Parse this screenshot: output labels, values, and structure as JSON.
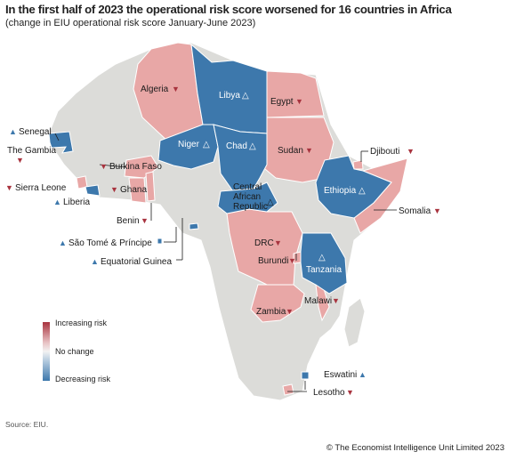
{
  "title": "In the first half of 2023 the operational risk score worsened for 16 countries in Africa",
  "subtitle": "(change in EIU operational risk score January-June 2023)",
  "source": "Source: EIU.",
  "copyright": "© The Economist Intelligence Unit Limited 2023",
  "colors": {
    "worsened": "#e8a7a6",
    "improved": "#3d78ac",
    "no_change": "#dcdcd9",
    "up_arrow": "#3d78ac",
    "down_arrow": "#a8333e",
    "border": "#ffffff"
  },
  "legend": {
    "top": "Increasing risk",
    "middle": "No change",
    "bottom": "Decreasing risk"
  },
  "countries": {
    "algeria": {
      "name": "Algeria",
      "change": "worsened"
    },
    "libya": {
      "name": "Libya",
      "change": "improved"
    },
    "egypt": {
      "name": "Egypt",
      "change": "worsened"
    },
    "niger": {
      "name": "Niger",
      "change": "improved"
    },
    "chad": {
      "name": "Chad",
      "change": "improved"
    },
    "sudan": {
      "name": "Sudan",
      "change": "worsened"
    },
    "senegal": {
      "name": "Senegal",
      "change": "improved"
    },
    "the_gambia": {
      "name": "The Gambia",
      "change": "worsened"
    },
    "burkina_faso": {
      "name": "Burkina Faso",
      "change": "worsened"
    },
    "ghana": {
      "name": "Ghana",
      "change": "worsened"
    },
    "sierra_leone": {
      "name": "Sierra Leone",
      "change": "worsened"
    },
    "liberia": {
      "name": "Liberia",
      "change": "improved"
    },
    "benin": {
      "name": "Benin",
      "change": "worsened"
    },
    "djibouti": {
      "name": "Djibouti",
      "change": "worsened"
    },
    "ethiopia": {
      "name": "Ethiopia",
      "change": "improved"
    },
    "somalia": {
      "name": "Somalia",
      "change": "worsened"
    },
    "central_african_republic": {
      "name": "Central African Republic",
      "lines": [
        "Central",
        "African",
        "Republic"
      ],
      "change": "improved"
    },
    "sao_tome": {
      "name": "São Tomé & Príncipe",
      "change": "improved"
    },
    "equatorial_guinea": {
      "name": "Equatorial Guinea",
      "change": "improved"
    },
    "drc": {
      "name": "DRC",
      "change": "worsened"
    },
    "burundi": {
      "name": "Burundi",
      "change": "worsened"
    },
    "tanzania": {
      "name": "Tanzania",
      "change": "improved"
    },
    "malawi": {
      "name": "Malawi",
      "change": "worsened"
    },
    "zambia": {
      "name": "Zambia",
      "change": "worsened"
    },
    "eswatini": {
      "name": "Eswatini",
      "change": "improved"
    },
    "lesotho": {
      "name": "Lesotho",
      "change": "worsened"
    }
  }
}
